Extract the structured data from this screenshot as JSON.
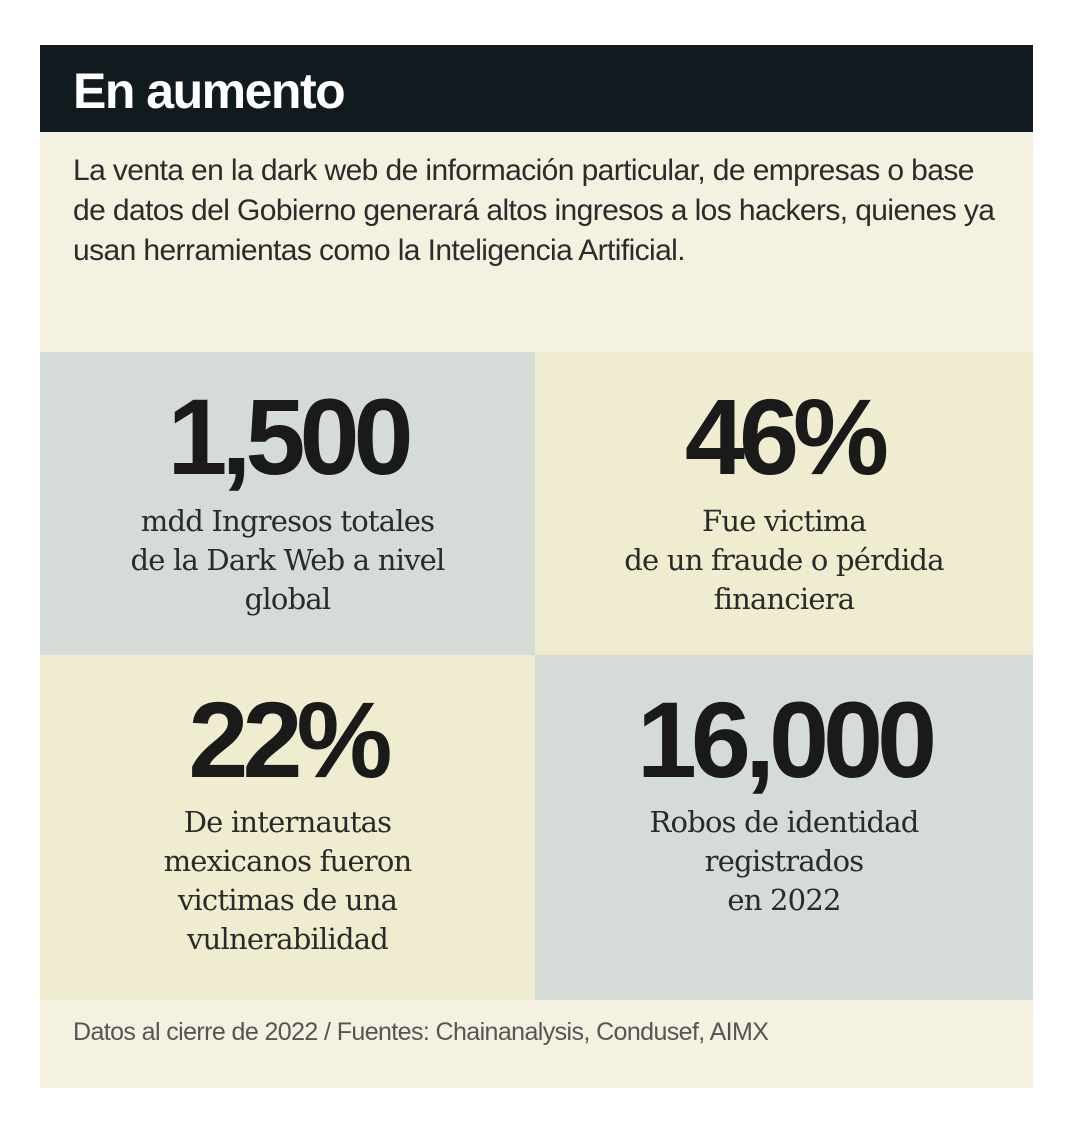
{
  "header": {
    "title": "En aumento"
  },
  "intro": {
    "text": "La venta en la dark web de información particular, de empresas o base de datos del Gobierno generará altos ingresos a los hackers, quienes ya usan herramientas como la Inteligencia Artificial."
  },
  "stats": [
    {
      "value": "1,500",
      "lines": [
        "mdd Ingresos totales",
        "de la Dark Web a nivel",
        "global"
      ]
    },
    {
      "value": "46%",
      "lines": [
        "Fue victima",
        "de un fraude o pérdida",
        "financiera"
      ]
    },
    {
      "value": "22%",
      "lines": [
        "De internautas",
        "mexicanos fueron",
        "victimas de una",
        "vulnerabilidad"
      ]
    },
    {
      "value": "16,000",
      "lines": [
        "Robos de identidad",
        "registrados",
        "en 2022"
      ]
    }
  ],
  "footer": {
    "source": "Datos al cierre de 2022 / Fuentes: Chainanalysis, Condusef, AIMX"
  },
  "colors": {
    "title_bar": "#111a1f",
    "card_background": "#f4f1e1",
    "tile_gray": "#d5dbd6",
    "tile_cream": "#efecd0",
    "text_dark": "#1a1a1a"
  }
}
